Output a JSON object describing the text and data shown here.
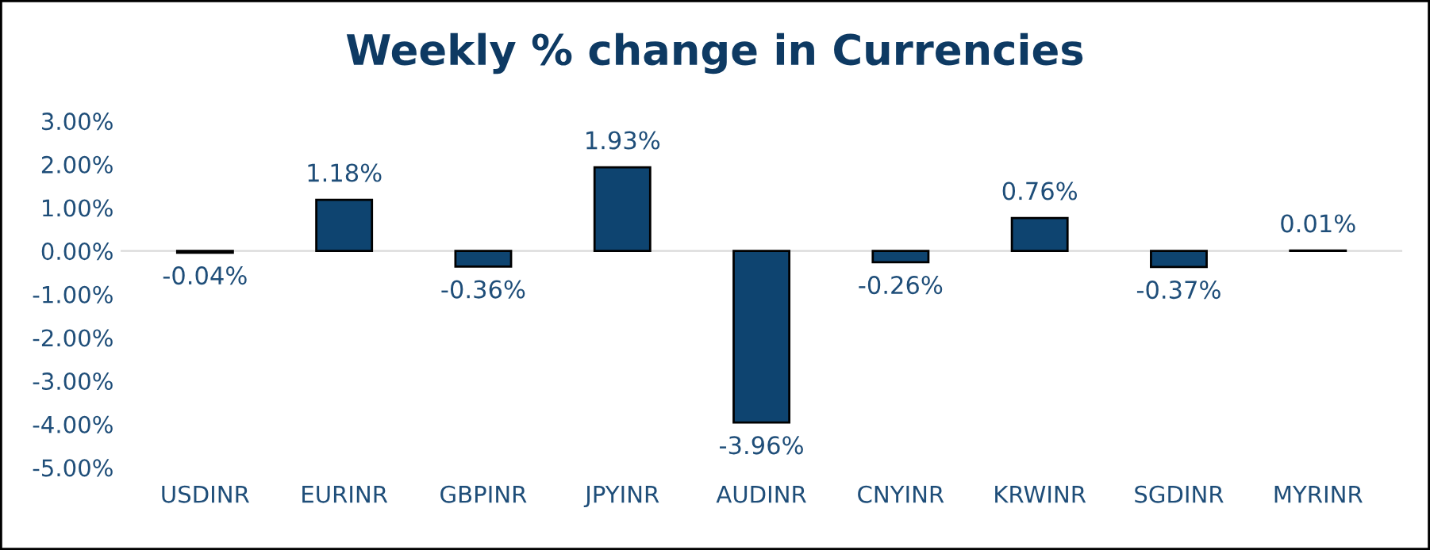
{
  "chart_data": {
    "type": "bar",
    "title": "Weekly % change in Currencies",
    "categories": [
      "USDINR",
      "EURINR",
      "GBPINR",
      "JPYINR",
      "AUDINR",
      "CNYINR",
      "KRWINR",
      "SGDINR",
      "MYRINR"
    ],
    "values": [
      -0.04,
      1.18,
      -0.36,
      1.93,
      -3.96,
      -0.26,
      0.76,
      -0.37,
      0.01
    ],
    "value_labels": [
      "-0.04%",
      "1.18%",
      "-0.36%",
      "1.93%",
      "-3.96%",
      "-0.26%",
      "0.76%",
      "-0.37%",
      "0.01%"
    ],
    "color": "#0e4470",
    "ylim": [
      -5,
      3
    ],
    "yticks": [
      {
        "value": 3,
        "label": "3.00%"
      },
      {
        "value": 2,
        "label": "2.00%"
      },
      {
        "value": 1,
        "label": "1.00%"
      },
      {
        "value": 0,
        "label": "0.00%"
      },
      {
        "value": -1,
        "label": "-1.00%"
      },
      {
        "value": -2,
        "label": "-2.00%"
      },
      {
        "value": -3,
        "label": "-3.00%"
      },
      {
        "value": -4,
        "label": "-4.00%"
      },
      {
        "value": -5,
        "label": "-5.00%"
      }
    ]
  }
}
